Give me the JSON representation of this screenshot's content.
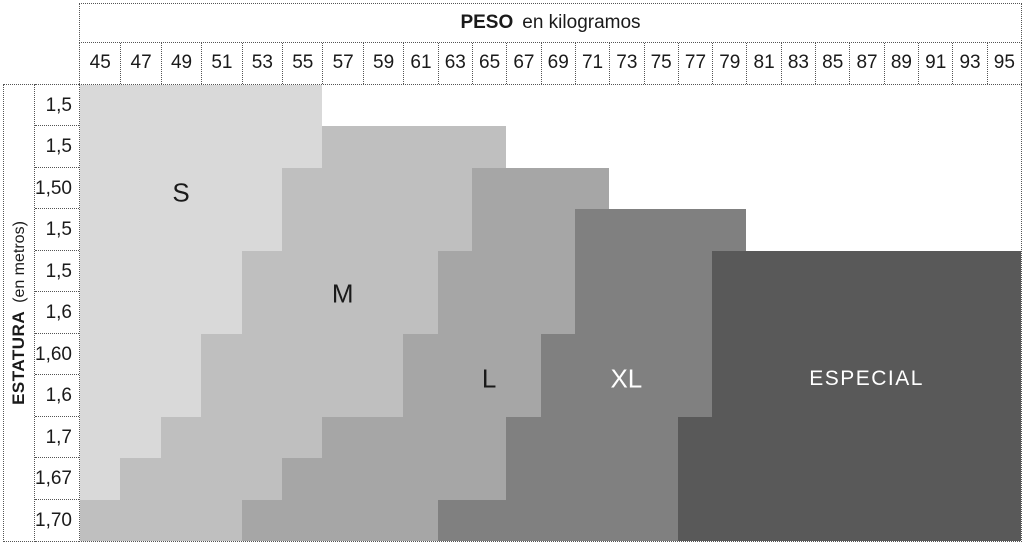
{
  "page": {
    "background": "#ffffff",
    "border_style": "dotted"
  },
  "top_header": {
    "bold": "PESO",
    "rest": "en kilogramos"
  },
  "left_header": {
    "bold": "ESTATURA",
    "rest": "(en metros)"
  },
  "chart_data": {
    "type": "heatmap",
    "x_axis": {
      "label": "PESO en kilogramos",
      "ticks": [
        45,
        47,
        49,
        51,
        53,
        55,
        57,
        59,
        61,
        63,
        65,
        67,
        69,
        71,
        73,
        75,
        77,
        79,
        81,
        83,
        85,
        87,
        89,
        91,
        93,
        95
      ]
    },
    "y_axis": {
      "label": "ESTATURA (en metros)",
      "ticks": [
        "1,5",
        "1,5",
        "1,50",
        "1,5",
        "1,5",
        "1,6",
        "1,60",
        "1,6",
        "1,7",
        "1,67",
        "1,70"
      ]
    },
    "size_colors": {
      "S": "#d9d9d9",
      "M": "#bfbfbf",
      "L": "#a6a6a6",
      "XL": "#808080",
      "ESPECIAL": "#595959"
    },
    "rows": [
      {
        "estatura": "1,5",
        "segments": [
          {
            "size": "S",
            "from": 45,
            "to": 55
          }
        ]
      },
      {
        "estatura": "1,5",
        "segments": [
          {
            "size": "S",
            "from": 45,
            "to": 55
          },
          {
            "size": "M",
            "from": 57,
            "to": 65
          }
        ]
      },
      {
        "estatura": "1,50",
        "segments": [
          {
            "size": "S",
            "from": 45,
            "to": 53
          },
          {
            "size": "M",
            "from": 55,
            "to": 63
          },
          {
            "size": "L",
            "from": 65,
            "to": 71
          }
        ]
      },
      {
        "estatura": "1,5",
        "segments": [
          {
            "size": "S",
            "from": 45,
            "to": 53
          },
          {
            "size": "M",
            "from": 55,
            "to": 63
          },
          {
            "size": "L",
            "from": 65,
            "to": 69
          },
          {
            "size": "XL",
            "from": 71,
            "to": 79
          }
        ]
      },
      {
        "estatura": "1,5",
        "segments": [
          {
            "size": "S",
            "from": 45,
            "to": 51
          },
          {
            "size": "M",
            "from": 53,
            "to": 61
          },
          {
            "size": "L",
            "from": 63,
            "to": 69
          },
          {
            "size": "XL",
            "from": 71,
            "to": 77
          },
          {
            "size": "ESPECIAL",
            "from": 79,
            "to": 95
          }
        ]
      },
      {
        "estatura": "1,6",
        "segments": [
          {
            "size": "S",
            "from": 45,
            "to": 51
          },
          {
            "size": "M",
            "from": 53,
            "to": 61
          },
          {
            "size": "L",
            "from": 63,
            "to": 69
          },
          {
            "size": "XL",
            "from": 71,
            "to": 77
          },
          {
            "size": "ESPECIAL",
            "from": 79,
            "to": 95
          }
        ]
      },
      {
        "estatura": "1,60",
        "segments": [
          {
            "size": "S",
            "from": 45,
            "to": 49
          },
          {
            "size": "M",
            "from": 51,
            "to": 59
          },
          {
            "size": "L",
            "from": 61,
            "to": 67
          },
          {
            "size": "XL",
            "from": 69,
            "to": 77
          },
          {
            "size": "ESPECIAL",
            "from": 79,
            "to": 95
          }
        ]
      },
      {
        "estatura": "1,6",
        "segments": [
          {
            "size": "S",
            "from": 45,
            "to": 49
          },
          {
            "size": "M",
            "from": 51,
            "to": 59
          },
          {
            "size": "L",
            "from": 61,
            "to": 67
          },
          {
            "size": "XL",
            "from": 69,
            "to": 77
          },
          {
            "size": "ESPECIAL",
            "from": 79,
            "to": 95
          }
        ]
      },
      {
        "estatura": "1,7",
        "segments": [
          {
            "size": "S",
            "from": 45,
            "to": 47
          },
          {
            "size": "M",
            "from": 49,
            "to": 55
          },
          {
            "size": "L",
            "from": 57,
            "to": 65
          },
          {
            "size": "XL",
            "from": 67,
            "to": 75
          },
          {
            "size": "ESPECIAL",
            "from": 77,
            "to": 95
          }
        ]
      },
      {
        "estatura": "1,67",
        "segments": [
          {
            "size": "S",
            "from": 45,
            "to": 45
          },
          {
            "size": "M",
            "from": 47,
            "to": 53
          },
          {
            "size": "L",
            "from": 55,
            "to": 65
          },
          {
            "size": "XL",
            "from": 67,
            "to": 75
          },
          {
            "size": "ESPECIAL",
            "from": 77,
            "to": 95
          }
        ]
      },
      {
        "estatura": "1,70",
        "segments": [
          {
            "size": "M",
            "from": 45,
            "to": 51
          },
          {
            "size": "L",
            "from": 53,
            "to": 61
          },
          {
            "size": "XL",
            "from": 63,
            "to": 75
          },
          {
            "size": "ESPECIAL",
            "from": 77,
            "to": 95
          }
        ]
      }
    ],
    "size_labels": [
      {
        "text": "S",
        "at_weight": 49,
        "at_row": 3.1,
        "color": "#1a1a1a"
      },
      {
        "text": "M",
        "at_weight": 57,
        "at_row": 5.55,
        "color": "#1a1a1a"
      },
      {
        "text": "L",
        "at_weight": 65,
        "at_row": 7.6,
        "color": "#1a1a1a"
      },
      {
        "text": "XL",
        "at_weight": 73,
        "at_row": 7.6,
        "color": "#ffffff"
      },
      {
        "text": "ESPECIAL",
        "at_weight": 87,
        "at_row": 7.6,
        "color": "#ffffff"
      }
    ],
    "layout": {
      "grid_lines": "dotted",
      "legend": "none",
      "plot_gridlines": false
    }
  }
}
